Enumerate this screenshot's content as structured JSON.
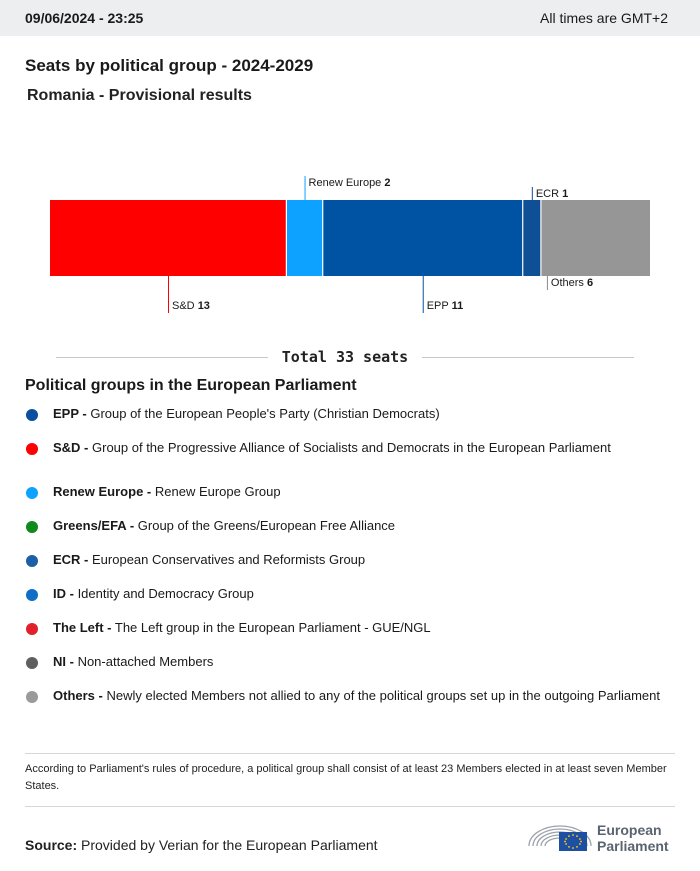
{
  "header": {
    "datetime": "09/06/2024 - 23:25",
    "timezone": "All times are GMT+2"
  },
  "title": "Seats by political group - 2024-2029",
  "subtitle": "Romania - Provisional results",
  "chart_data": {
    "type": "bar",
    "orientation": "horizontal-stacked",
    "categories": [
      "S&D",
      "Renew Europe",
      "EPP",
      "ECR",
      "Others"
    ],
    "values": [
      13,
      2,
      11,
      1,
      6
    ],
    "colors": [
      "#ff0000",
      "#0da2ff",
      "#0052a3",
      "#0e4f96",
      "#969696"
    ],
    "label_sides": [
      "below",
      "above",
      "below",
      "above",
      "below"
    ],
    "total": 33,
    "total_label": "Total 33 seats"
  },
  "legend": {
    "title": "Political groups in the European Parliament",
    "items": [
      {
        "abbr": "EPP -",
        "desc": "Group of the European People's Party (Christian Democrats)",
        "color": "#0b4f9e"
      },
      {
        "abbr": "S&D -",
        "desc": "Group of the Progressive Alliance of Socialists and Democrats in the European Parliament",
        "color": "#ff0000"
      },
      {
        "abbr": "Renew Europe -",
        "desc": "Renew Europe Group",
        "color": "#0da2ff"
      },
      {
        "abbr": "Greens/EFA -",
        "desc": "Group of the Greens/European Free Alliance",
        "color": "#0f8a1e"
      },
      {
        "abbr": "ECR -",
        "desc": "European Conservatives and Reformists Group",
        "color": "#1d5fa6"
      },
      {
        "abbr": "ID -",
        "desc": "Identity and Democracy Group",
        "color": "#0e6fc8"
      },
      {
        "abbr": "The Left -",
        "desc": "The Left group in the European Parliament - GUE/NGL",
        "color": "#e0212c"
      },
      {
        "abbr": "NI -",
        "desc": "Non-attached Members",
        "color": "#5f5f5f"
      },
      {
        "abbr": "Others -",
        "desc": "Newly elected Members not allied to any of the political groups set up in the outgoing Parliament",
        "color": "#9a9a9a"
      }
    ]
  },
  "footnote": "According to Parliament's rules of procedure, a political group shall consist of at least 23 Members elected in at least seven Member States.",
  "source": {
    "label": "Source:",
    "text": "Provided by Verian for the European Parliament"
  },
  "logo": {
    "line1": "European",
    "line2": "Parliament"
  }
}
